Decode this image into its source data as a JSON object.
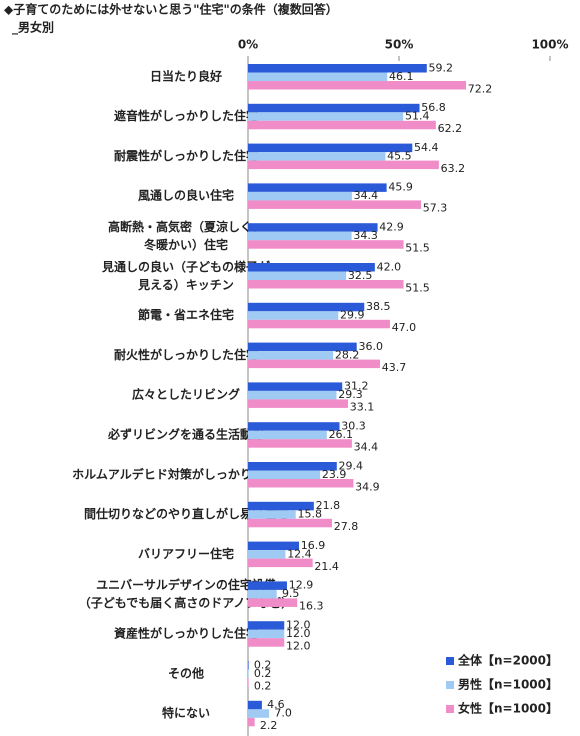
{
  "chart_data": {
    "type": "hbar",
    "title": "◆子育てのためには外せないと思う\"住宅\"の条件（複数回答）",
    "subtitle": "_男女別",
    "categories": [
      "日当たり良好",
      "遮音性がしっかりした住宅",
      "耐震性がしっかりした住宅",
      "風通しの良い住宅",
      "高断熱・高気密（夏涼しく、\n冬暖かい）住宅",
      "見通しの良い（子どもの様子が\n見える）キッチン",
      "節電・省エネ住宅",
      "耐火性がしっかりした住宅",
      "広々としたリビング",
      "必ずリビングを通る生活動線",
      "ホルムアルデヒド対策がしっかりした住宅",
      "間仕切りなどのやり直しがし易い住宅",
      "バリアフリー住宅",
      "ユニバーサルデザインの住宅設備\n（子どもでも届く高さのドアノブなど）",
      "資産性がしっかりした住宅",
      "その他",
      "特にない"
    ],
    "series": [
      {
        "name": "全体【n=2000】",
        "color": "#2b5ad8",
        "values": [
          59.2,
          56.8,
          54.4,
          45.9,
          42.9,
          42.0,
          38.5,
          36.0,
          31.2,
          30.3,
          29.4,
          21.8,
          16.9,
          12.9,
          12.0,
          0.2,
          4.6
        ],
        "value_labels": [
          "59.2",
          "56.8",
          "54.4",
          "45.9",
          "42.9",
          "42.0",
          "38.5",
          "36.0",
          "31.2",
          "30.3",
          "29.4",
          "21.8",
          "16.9",
          "12.9",
          "12.0",
          "0.2",
          "4.6"
        ]
      },
      {
        "name": "男性【n=1000】",
        "color": "#9fcaf4",
        "values": [
          46.1,
          51.4,
          45.5,
          34.4,
          34.3,
          32.5,
          29.9,
          28.2,
          29.3,
          26.1,
          23.9,
          15.8,
          12.4,
          9.5,
          12.0,
          0.2,
          7.0
        ],
        "value_labels": [
          "46.1",
          "51.4",
          "45.5",
          "34.4",
          "34.3",
          "32.5",
          "29.9",
          "28.2",
          "29.3",
          "26.1",
          "23.9",
          "15.8",
          "12.4",
          "9.5",
          "12.0",
          "0.2",
          "7.0"
        ]
      },
      {
        "name": "女性【n=1000】",
        "color": "#f08cc8",
        "values": [
          72.2,
          62.2,
          63.2,
          57.3,
          51.5,
          51.5,
          47.0,
          43.7,
          33.1,
          34.4,
          34.9,
          27.8,
          21.4,
          16.3,
          12.0,
          0.2,
          2.2
        ],
        "value_labels": [
          "72.2",
          "62.2",
          "63.2",
          "57.3",
          "51.5",
          "51.5",
          "47.0",
          "43.7",
          "33.1",
          "34.4",
          "34.9",
          "27.8",
          "21.4",
          "16.3",
          "12.0",
          "0.2",
          "2.2"
        ]
      }
    ],
    "xlim": [
      0,
      100
    ],
    "xticks": [
      {
        "value": 0,
        "label": "0%"
      },
      {
        "value": 50,
        "label": "50%"
      },
      {
        "value": 100,
        "label": "100%"
      }
    ]
  }
}
